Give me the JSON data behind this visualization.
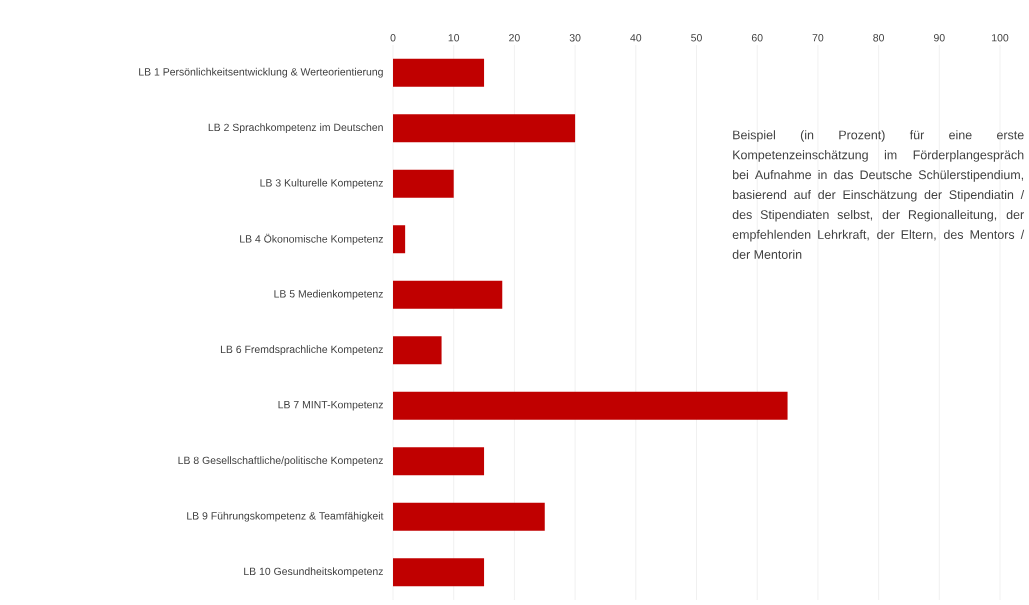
{
  "chart_data": {
    "type": "bar",
    "orientation": "horizontal",
    "categories": [
      "LB 1 Persönlichkeitsentwicklung & Werteorientierung",
      "LB 2 Sprachkompetenz im Deutschen",
      "LB 3 Kulturelle Kompetenz",
      "LB 4 Ökonomische Kompetenz",
      "LB 5 Medienkompetenz",
      "LB 6 Fremdsprachliche Kompetenz",
      "LB 7 MINT-Kompetenz",
      "LB 8 Gesellschaftliche/politische Kompetenz",
      "LB 9 Führungskompetenz & Teamfähigkeit",
      "LB 10 Gesundheitskompetenz"
    ],
    "values": [
      15,
      30,
      10,
      2,
      18,
      8,
      65,
      15,
      25,
      15
    ],
    "color": "#c00000",
    "xlim": [
      0,
      100
    ],
    "xticks": [
      0,
      10,
      20,
      30,
      40,
      50,
      60,
      70,
      80,
      90,
      100
    ],
    "grid": "x",
    "annotations": [
      "Beispiel (in Prozent) für eine erste Kompetenzeinschätzung im Förderplangespräch bei Aufnahme in das Deutsche Schülerstipendium, basierend auf der Einschätzung der Stipendiatin / des Stipendiaten selbst, der Regionalleitung, der empfehlenden Lehrkraft, der Eltern, des Mentors / der Mentorin"
    ]
  }
}
